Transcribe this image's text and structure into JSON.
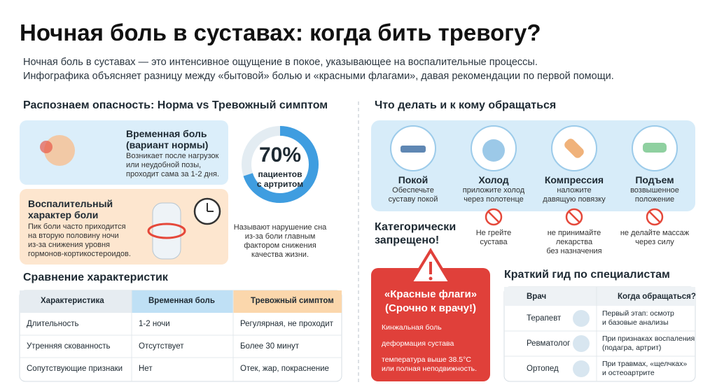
{
  "header": {
    "title": "Ночная боль в суставах: когда бить тревогу?",
    "subtitle": [
      "Ночная боль в суставах — это интенсивное ощущение в покое, указывающее на воспалительные процессы.",
      "Инфографика объясняет разницу между «бытовой» болью и «красными флагами», давая рекомендации по первой помощи."
    ]
  },
  "recognize": {
    "heading": "Распознаем опасность: Норма vs Тревожный симптом",
    "normal": {
      "title": [
        "Временная боль",
        "(вариант нормы)"
      ],
      "text": [
        "Возникает после нагрузок",
        "или неудобной позы,",
        "проходит сама за 1-2 дня."
      ]
    },
    "alarm": {
      "title": [
        "Воспалительный",
        "характер боли"
      ],
      "text": [
        "Пик боли часто приходится",
        "на вторую половину ночи",
        "из-за снижения уровня",
        "гормонов-кортикостероидов."
      ]
    }
  },
  "stat": {
    "value": 70,
    "value_label": "70%",
    "label": [
      "пациентов",
      "с артритом"
    ],
    "text": [
      "Называют нарушение сна",
      "из-за боли главным",
      "фактором снижения",
      "качества жизни."
    ]
  },
  "comparison": {
    "heading": "Сравнение характеристик",
    "columns": [
      "Характеристика",
      "Временная боль",
      "Тревожный симптом"
    ],
    "rows": [
      [
        "Длительность",
        "1-2 ночи",
        "Регулярная, не проходит"
      ],
      [
        "Утренняя скованность",
        "Отсутствует",
        "Более 30 минут"
      ],
      [
        "Сопутствующие признаки",
        "Нет",
        "Отек, жар, покраснение"
      ]
    ]
  },
  "actions": {
    "heading": "Что делать и к кому обращаться",
    "items": [
      {
        "title": "Покой",
        "text": [
          "Обеспечьте",
          "суставу покой"
        ]
      },
      {
        "title": "Холод",
        "text": [
          "приложите холод",
          "через полотенце"
        ]
      },
      {
        "title": "Компрессия",
        "text": [
          "наложите",
          "давящую повязку"
        ]
      },
      {
        "title": "Подъем",
        "text": [
          "возвышенное",
          "положение"
        ]
      }
    ]
  },
  "forbidden": {
    "heading": [
      "Категорически",
      "запрещено!"
    ],
    "items": [
      [
        "Не грейте",
        "сустава"
      ],
      [
        "не принимайте",
        "лекарства",
        "без назначения"
      ],
      [
        "не делайте массаж",
        "через силу"
      ]
    ]
  },
  "red_flags": {
    "title": [
      "«Красные флаги»",
      "(Срочно к врачу!)"
    ],
    "items": [
      [
        "Кинжальная боль"
      ],
      [
        "деформация сустава"
      ],
      [
        "температура выше 38.5°C",
        "или полная неподвижность."
      ]
    ]
  },
  "specialists": {
    "heading": "Краткий гид по специалистам",
    "columns": [
      "Врач",
      "Когда обращаться?"
    ],
    "rows": [
      {
        "doctor": "Терапевт",
        "when": [
          "Первый этап: осмотр",
          "и базовые анализы"
        ]
      },
      {
        "doctor": "Ревматолог",
        "when": [
          "При признаках воспаления",
          "(подагра, артрит)"
        ]
      },
      {
        "doctor": "Ортопед",
        "when": [
          "При травмах, «щелчках»",
          "и остеоартрите"
        ]
      }
    ]
  }
}
